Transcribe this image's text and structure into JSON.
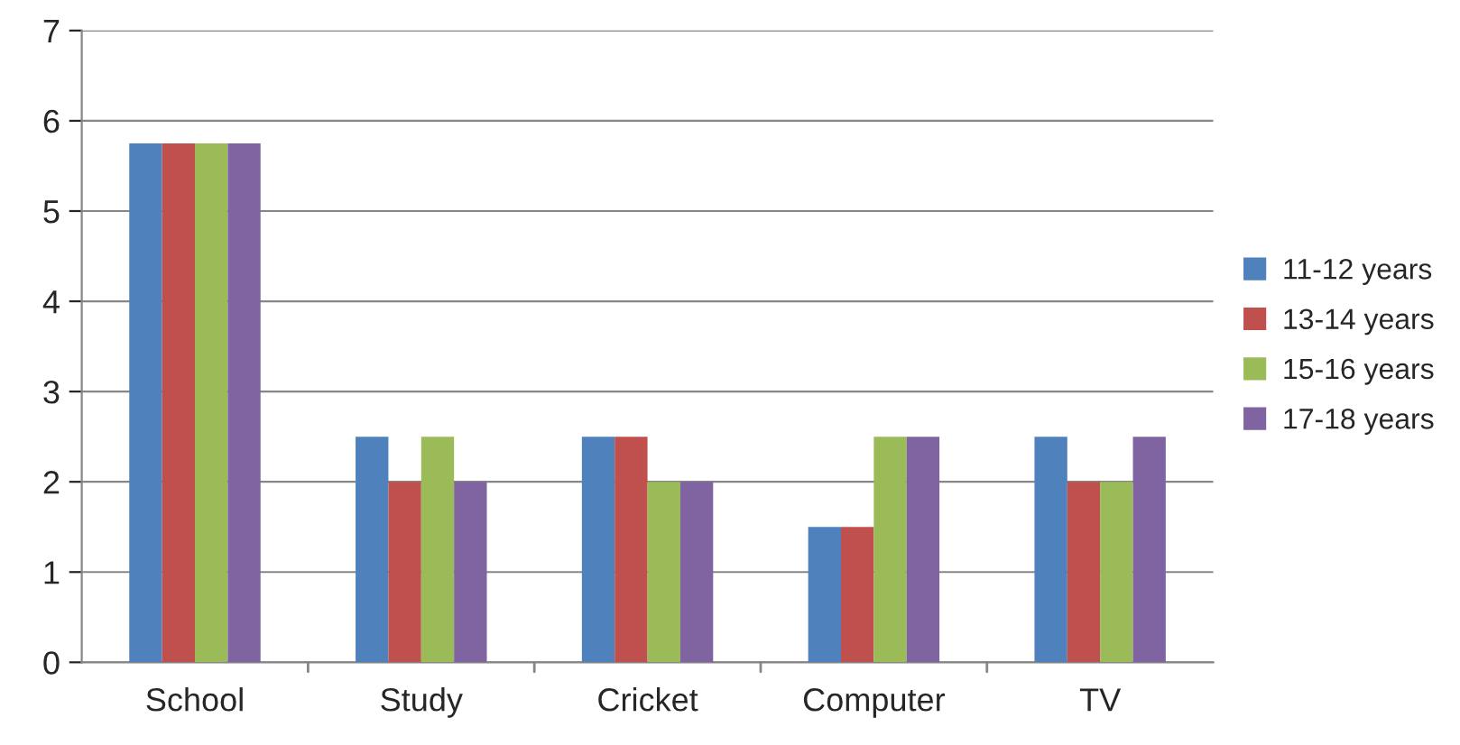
{
  "chart_data": {
    "type": "bar",
    "categories": [
      "School",
      "Study",
      "Cricket",
      "Computer",
      "TV"
    ],
    "series": [
      {
        "name": "11-12 years",
        "color": "#4f81bd",
        "values": [
          5.75,
          2.5,
          2.5,
          1.5,
          2.5
        ]
      },
      {
        "name": "13-14 years",
        "color": "#c0504d",
        "values": [
          5.75,
          2,
          2.5,
          1.5,
          2
        ]
      },
      {
        "name": "15-16 years",
        "color": "#9bbb59",
        "values": [
          5.75,
          2.5,
          2,
          2.5,
          2
        ]
      },
      {
        "name": "17-18 years",
        "color": "#8064a2",
        "values": [
          5.75,
          2,
          2,
          2.5,
          2.5
        ]
      }
    ],
    "ylim": [
      0,
      7
    ],
    "yticks": [
      0,
      1,
      2,
      3,
      4,
      5,
      6,
      7
    ],
    "grid": "y",
    "legend": "right"
  }
}
